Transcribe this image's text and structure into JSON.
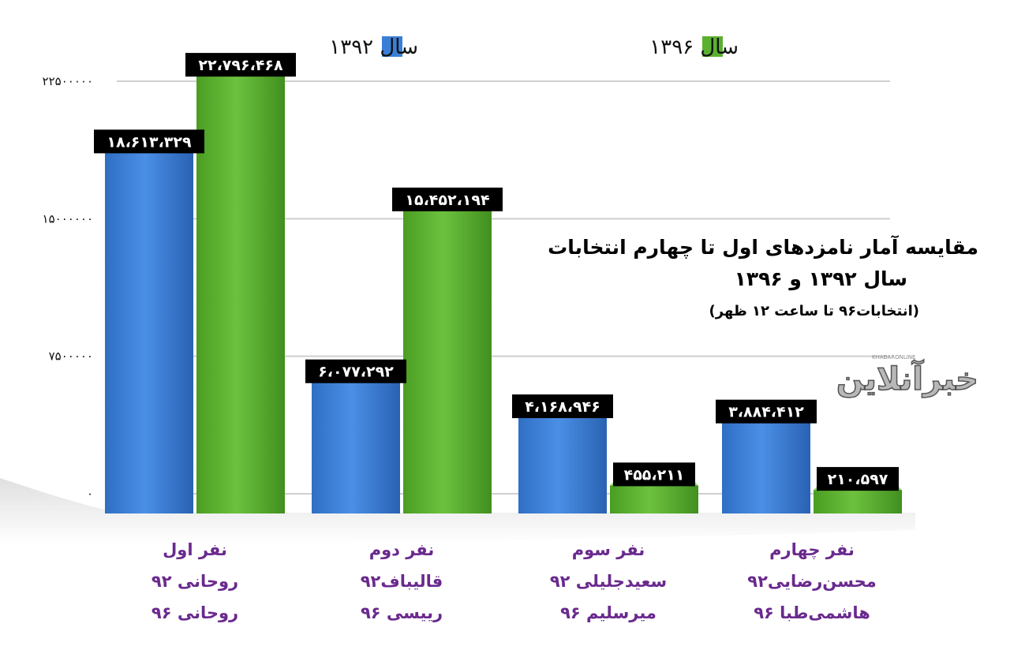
{
  "chart_data": {
    "type": "bar",
    "title": "مقایسه آمار نامزدهای اول تا چهارم انتخابات",
    "subtitle": "سال ۱۳۹۲ و ۱۳۹۶",
    "note": "(انتخابات۹۶ تا ساعت ۱۲ ظهر)",
    "legend_position": "top",
    "grid": true,
    "ylim": [
      0,
      22500000
    ],
    "y_ticks": [
      {
        "value": 0,
        "label": "۰"
      },
      {
        "value": 7500000,
        "label": "۷۵۰۰۰۰۰"
      },
      {
        "value": 15000000,
        "label": "۱۵۰۰۰۰۰۰"
      },
      {
        "value": 22500000,
        "label": "۲۲۵۰۰۰۰۰"
      }
    ],
    "categories": [
      {
        "rank": "نفر اول",
        "line92": "روحانی ۹۲",
        "line96": "روحانی ۹۶"
      },
      {
        "rank": "نفر دوم",
        "line92": "قالیباف۹۲",
        "line96": "رییسی ۹۶"
      },
      {
        "rank": "نفر سوم",
        "line92": "سعیدجلیلی ۹۲",
        "line96": "میرسلیم ۹۶"
      },
      {
        "rank": "نفر چهارم",
        "line92": "محسن‌رضایی۹۲",
        "line96": "هاشمی‌طبا ۹۶"
      }
    ],
    "series": [
      {
        "name": "سال ۱۳۹۲",
        "color": "#3a7fd6",
        "values": [
          18613329,
          6077292,
          4168946,
          3884412
        ],
        "labels": [
          "۱۸،۶۱۳،۳۲۹",
          "۶،۰۷۷،۲۹۲",
          "۴،۱۶۸،۹۴۶",
          "۳،۸۸۴،۴۱۲"
        ]
      },
      {
        "name": "سال ۱۳۹۶",
        "color": "#5ab030",
        "values": [
          22796468,
          15452194,
          455211,
          210597
        ],
        "labels": [
          "۲۲،۷۹۶،۴۶۸",
          "۱۵،۴۵۲،۱۹۴",
          "۴۵۵،۲۱۱",
          "۲۱۰،۵۹۷"
        ]
      }
    ]
  },
  "watermark": {
    "text": "خبرآنلاین",
    "subtext": "KHABARONLINE"
  }
}
